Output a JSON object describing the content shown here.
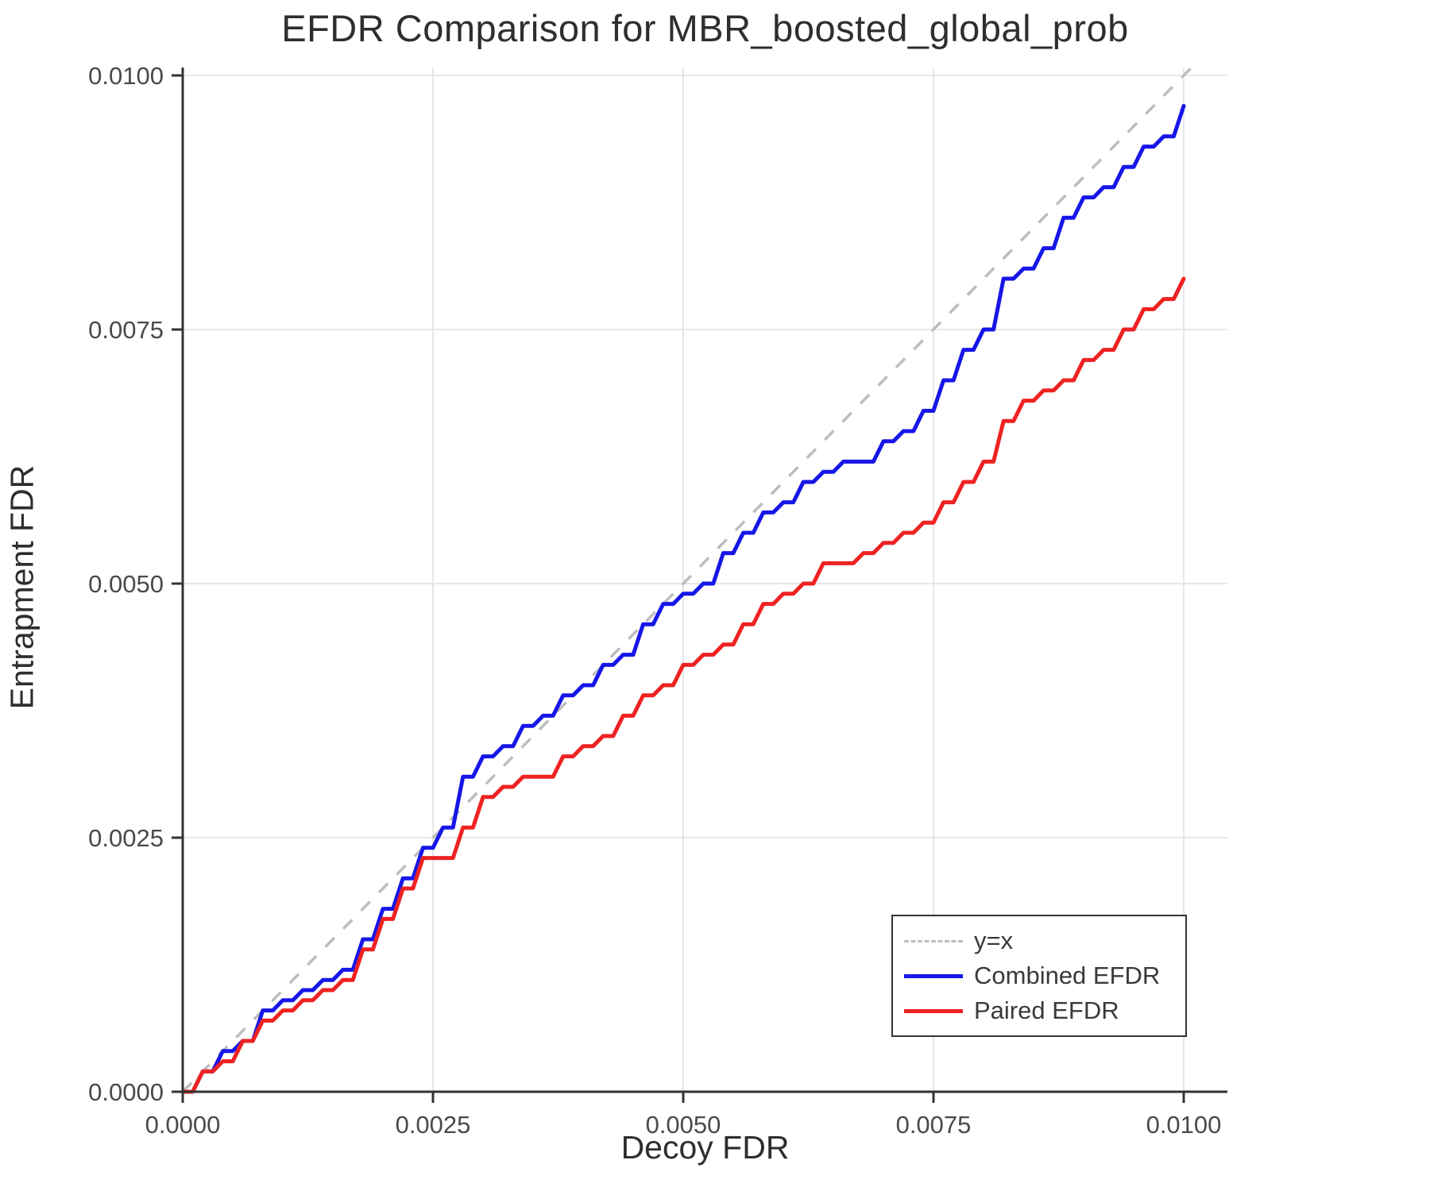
{
  "chart_data": {
    "type": "line",
    "title": "EFDR Comparison for MBR_boosted_global_prob",
    "xlabel": "Decoy FDR",
    "ylabel": "Entrapment FDR",
    "xlim": [
      0.0,
      0.0104
    ],
    "ylim": [
      0.0,
      0.0101
    ],
    "grid": true,
    "legend_position": "bottom-right",
    "colors": {
      "grid": "#e7e7e7",
      "axis": "#333333",
      "tick_text": "#4a4a4a",
      "reference": "#bdbdbd",
      "combined": "#1616e8",
      "paired": "#ee2222"
    },
    "xticks": {
      "values": [
        0.0,
        0.0025,
        0.005,
        0.0075,
        0.01
      ],
      "labels": [
        "0.0000",
        "0.0025",
        "0.0050",
        "0.0075",
        "0.0100"
      ]
    },
    "yticks": {
      "values": [
        0.0,
        0.0025,
        0.005,
        0.0075,
        0.01
      ],
      "labels": [
        "0.0000",
        "0.0025",
        "0.0050",
        "0.0075",
        "0.0100"
      ]
    },
    "reference_line": {
      "name": "y=x",
      "style": "dashed",
      "color": "#bdbdbd"
    },
    "x": [
      0.0,
      0.0002,
      0.0004,
      0.0006,
      0.0008,
      0.001,
      0.0012,
      0.0014,
      0.0016,
      0.0018,
      0.002,
      0.0022,
      0.0024,
      0.0026,
      0.0028,
      0.003,
      0.0032,
      0.0034,
      0.0036,
      0.0038,
      0.004,
      0.0042,
      0.0044,
      0.0046,
      0.0048,
      0.005,
      0.0052,
      0.0054,
      0.0056,
      0.0058,
      0.006,
      0.0062,
      0.0064,
      0.0066,
      0.0068,
      0.007,
      0.0072,
      0.0074,
      0.0076,
      0.0078,
      0.008,
      0.0082,
      0.0084,
      0.0086,
      0.0088,
      0.009,
      0.0092,
      0.0094,
      0.0096,
      0.0098,
      0.01
    ],
    "series": [
      {
        "name": "Combined EFDR",
        "color": "#1616e8",
        "y": [
          0.0,
          0.0002,
          0.0004,
          0.0005,
          0.0008,
          0.0009,
          0.001,
          0.0011,
          0.0012,
          0.0015,
          0.0018,
          0.0021,
          0.0024,
          0.0026,
          0.0031,
          0.0033,
          0.0034,
          0.0036,
          0.0037,
          0.0039,
          0.004,
          0.0042,
          0.0043,
          0.0046,
          0.0048,
          0.0049,
          0.005,
          0.0053,
          0.0055,
          0.0057,
          0.0058,
          0.006,
          0.0061,
          0.0062,
          0.0062,
          0.0064,
          0.0065,
          0.0067,
          0.007,
          0.0073,
          0.0075,
          0.008,
          0.0081,
          0.0083,
          0.0086,
          0.0088,
          0.0089,
          0.0091,
          0.0093,
          0.0094,
          0.0097
        ]
      },
      {
        "name": "Paired EFDR",
        "color": "#ee2222",
        "y": [
          0.0,
          0.0002,
          0.0003,
          0.0005,
          0.0007,
          0.0008,
          0.0009,
          0.001,
          0.0011,
          0.0014,
          0.0017,
          0.002,
          0.0023,
          0.0023,
          0.0026,
          0.0029,
          0.003,
          0.0031,
          0.0031,
          0.0033,
          0.0034,
          0.0035,
          0.0037,
          0.0039,
          0.004,
          0.0042,
          0.0043,
          0.0044,
          0.0046,
          0.0048,
          0.0049,
          0.005,
          0.0052,
          0.0052,
          0.0053,
          0.0054,
          0.0055,
          0.0056,
          0.0058,
          0.006,
          0.0062,
          0.0066,
          0.0068,
          0.0069,
          0.007,
          0.0072,
          0.0073,
          0.0075,
          0.0077,
          0.0078,
          0.008
        ]
      }
    ]
  }
}
